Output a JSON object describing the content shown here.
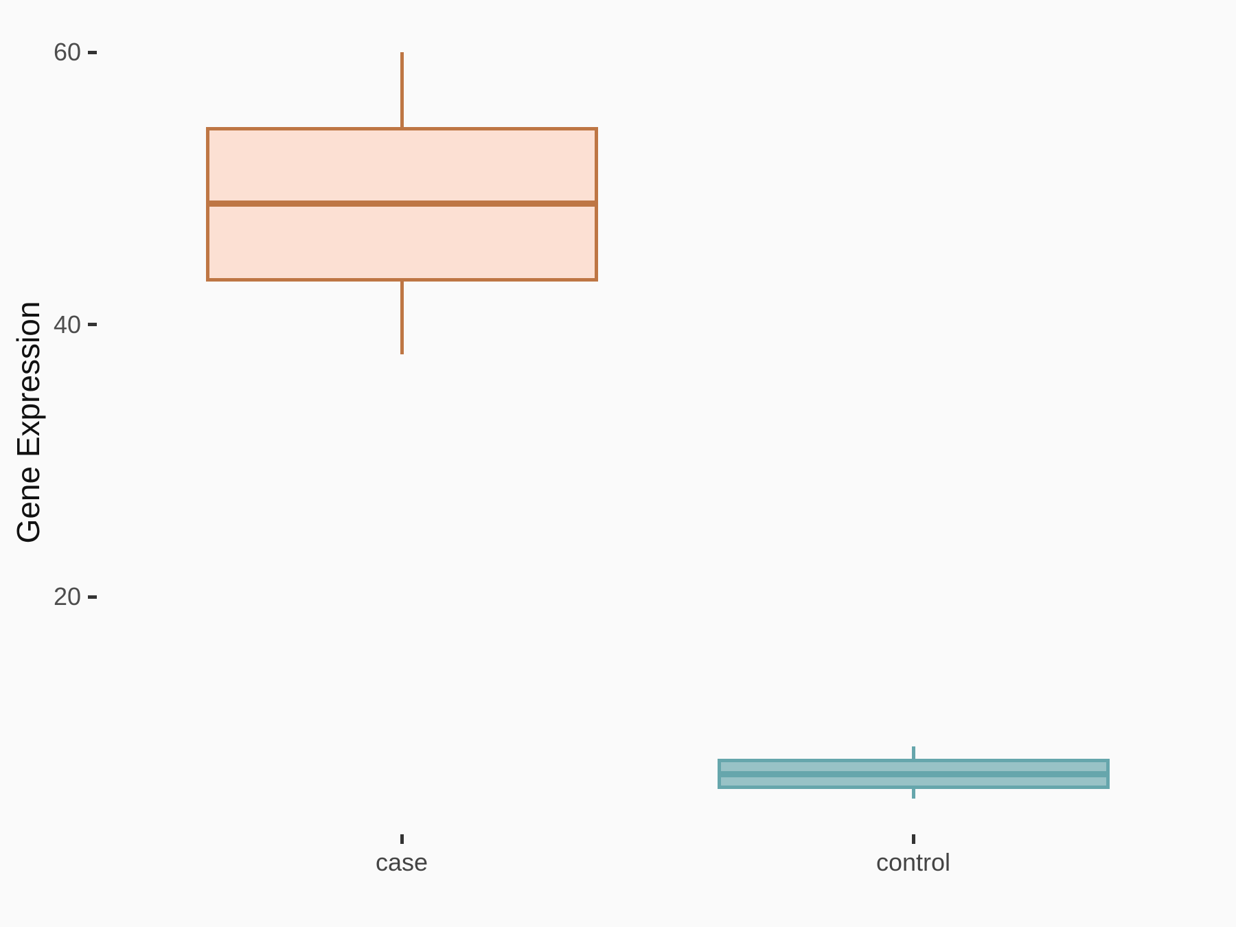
{
  "background_color": "#FAFAFA",
  "chart_data": {
    "type": "boxplot",
    "title": "",
    "xlabel": "",
    "ylabel": "Gene Expression",
    "categories": [
      "case",
      "control"
    ],
    "y_ticks": [
      60,
      40,
      20
    ],
    "ylim": [
      2.3,
      62.8
    ],
    "grid": false,
    "legend": "none",
    "box_width_ratio": 0.75,
    "series": [
      {
        "name": "case",
        "min": 37.8,
        "q1": 43.3,
        "median": 48.9,
        "q3": 54.4,
        "max": 60.0,
        "stroke_color": "#BE7644",
        "fill_color": "#FCE0D3"
      },
      {
        "name": "control",
        "min": 5.2,
        "q1": 6.0,
        "median": 7.0,
        "q3": 8.0,
        "max": 9.0,
        "stroke_color": "#66A6AC",
        "fill_color": "#98C2C6"
      }
    ],
    "axis_text_color": "#4D4D4D",
    "axis_title_color": "#111111",
    "tick_mark_color": "#333333"
  }
}
